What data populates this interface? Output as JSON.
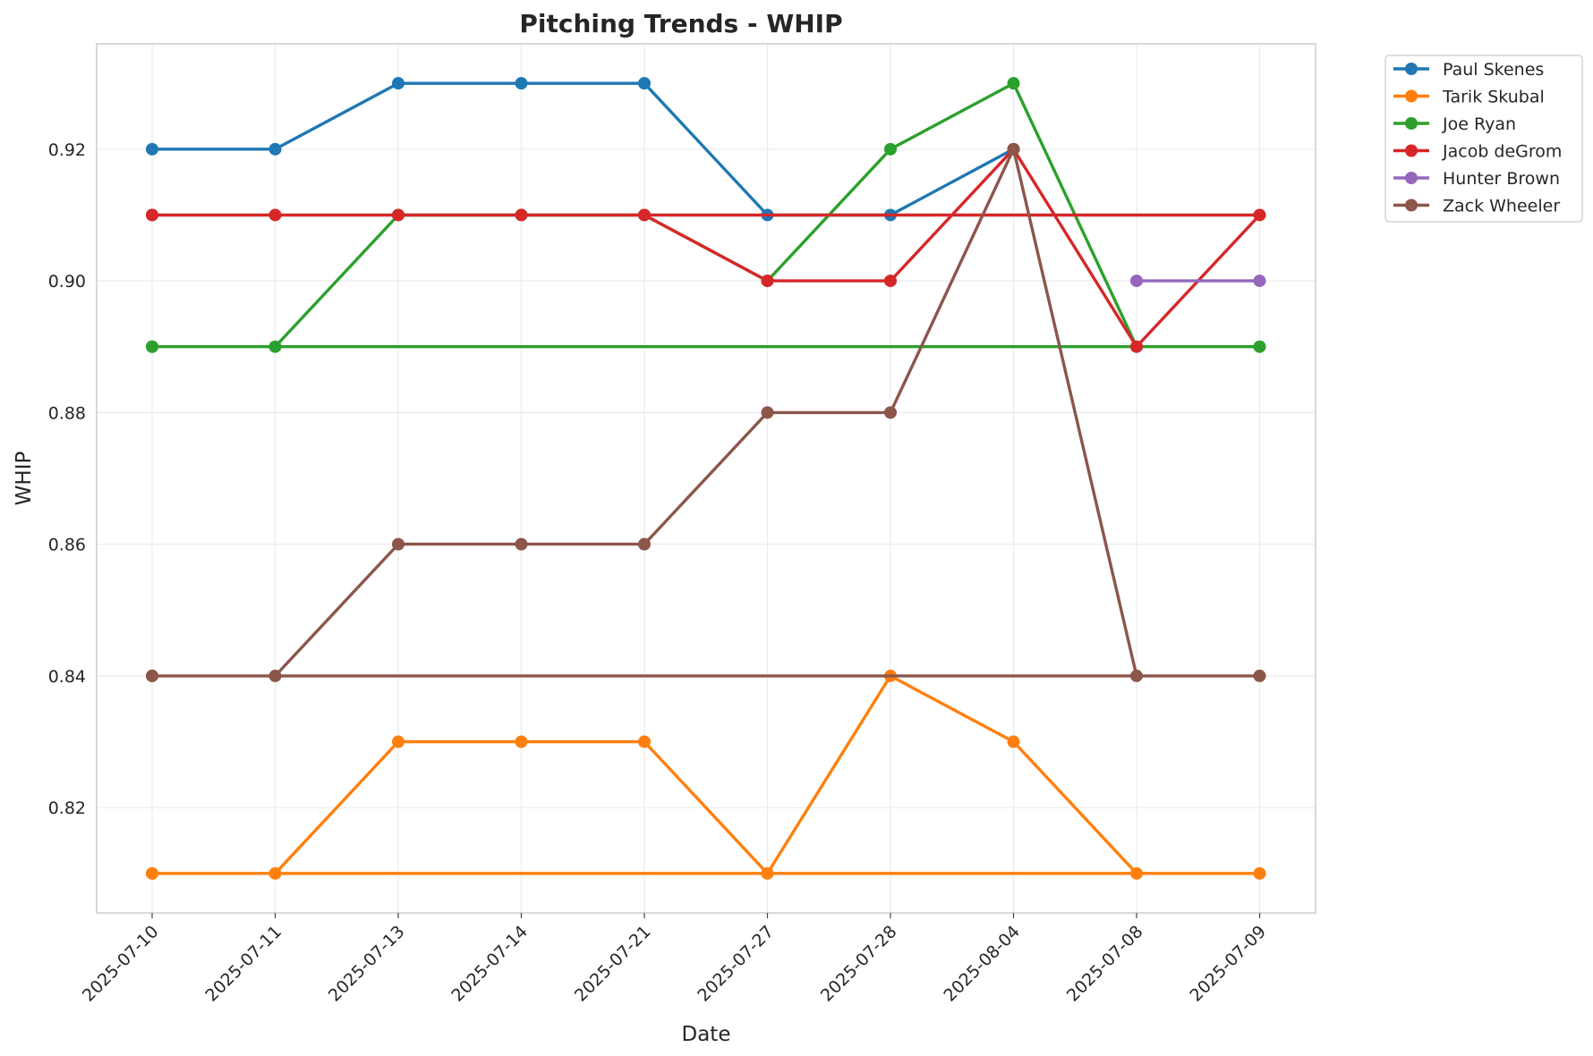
{
  "chart_data": {
    "type": "line",
    "title": "Pitching Trends - WHIP",
    "xlabel": "Date",
    "ylabel": "WHIP",
    "categories": [
      "2025-07-10",
      "2025-07-11",
      "2025-07-13",
      "2025-07-14",
      "2025-07-21",
      "2025-07-27",
      "2025-07-28",
      "2025-08-04",
      "2025-07-08",
      "2025-07-09"
    ],
    "yticks": [
      "0.82",
      "0.84",
      "0.86",
      "0.88",
      "0.90",
      "0.92"
    ],
    "ylim": [
      0.804,
      0.936
    ],
    "grid": true,
    "legend_position": "outside-top-right",
    "series": [
      {
        "name": "Paul Skenes",
        "color": "#1f77b4",
        "points": [
          [
            "2025-07-10",
            0.92
          ],
          [
            "2025-07-11",
            0.92
          ],
          [
            "2025-07-13",
            0.93
          ],
          [
            "2025-07-14",
            0.93
          ],
          [
            "2025-07-21",
            0.93
          ],
          [
            "2025-07-27",
            0.91
          ],
          [
            "2025-07-28",
            0.91
          ],
          [
            "2025-08-04",
            0.92
          ]
        ]
      },
      {
        "name": "Tarik Skubal",
        "color": "#ff7f0e",
        "points": [
          [
            "2025-07-10",
            0.81
          ],
          [
            "2025-07-11",
            0.81
          ],
          [
            "2025-07-13",
            0.83
          ],
          [
            "2025-07-14",
            0.83
          ],
          [
            "2025-07-21",
            0.83
          ],
          [
            "2025-07-27",
            0.81
          ],
          [
            "2025-07-28",
            0.84
          ],
          [
            "2025-08-04",
            0.83
          ],
          [
            "2025-07-08",
            0.81
          ],
          [
            "2025-07-09",
            0.81
          ],
          [
            "2025-07-10",
            0.81
          ]
        ]
      },
      {
        "name": "Joe Ryan",
        "color": "#2ca02c",
        "points": [
          [
            "2025-07-10",
            0.89
          ],
          [
            "2025-07-11",
            0.89
          ],
          [
            "2025-07-13",
            0.91
          ],
          [
            "2025-07-14",
            0.91
          ],
          [
            "2025-07-21",
            0.91
          ],
          [
            "2025-07-27",
            0.9
          ],
          [
            "2025-07-28",
            0.92
          ],
          [
            "2025-08-04",
            0.93
          ],
          [
            "2025-07-08",
            0.89
          ],
          [
            "2025-07-09",
            0.89
          ],
          [
            "2025-07-10",
            0.89
          ]
        ]
      },
      {
        "name": "Jacob deGrom",
        "color": "#d62728",
        "points": [
          [
            "2025-07-10",
            0.91
          ],
          [
            "2025-07-11",
            0.91
          ],
          [
            "2025-07-13",
            0.91
          ],
          [
            "2025-07-14",
            0.91
          ],
          [
            "2025-07-21",
            0.91
          ],
          [
            "2025-07-27",
            0.9
          ],
          [
            "2025-07-28",
            0.9
          ],
          [
            "2025-08-04",
            0.92
          ],
          [
            "2025-07-08",
            0.89
          ],
          [
            "2025-07-09",
            0.91
          ],
          [
            "2025-07-10",
            0.91
          ]
        ]
      },
      {
        "name": "Hunter Brown",
        "color": "#9467bd",
        "points": [
          [
            "2025-07-08",
            0.9
          ],
          [
            "2025-07-09",
            0.9
          ]
        ]
      },
      {
        "name": "Zack Wheeler",
        "color": "#8c564b",
        "points": [
          [
            "2025-07-10",
            0.84
          ],
          [
            "2025-07-11",
            0.84
          ],
          [
            "2025-07-13",
            0.86
          ],
          [
            "2025-07-14",
            0.86
          ],
          [
            "2025-07-21",
            0.86
          ],
          [
            "2025-07-27",
            0.88
          ],
          [
            "2025-07-28",
            0.88
          ],
          [
            "2025-08-04",
            0.92
          ],
          [
            "2025-07-08",
            0.84
          ],
          [
            "2025-07-09",
            0.84
          ],
          [
            "2025-07-10",
            0.84
          ]
        ]
      }
    ]
  }
}
